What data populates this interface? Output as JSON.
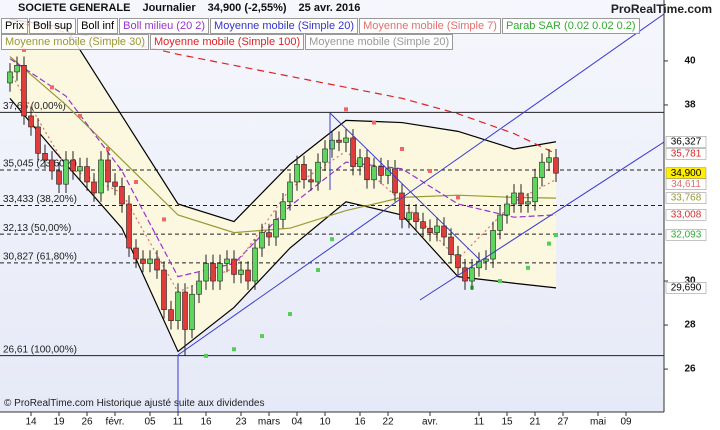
{
  "chart_data": {
    "type": "candlestick",
    "title": "SOCIETE GENERALE",
    "period": "Journalier",
    "last": "34,900 (-2,55%)",
    "date": "25 avr. 2016",
    "brand": "ProRealTime.com",
    "footer": "© ProRealTime.com Historique ajusté suite aux dividendes",
    "legend": [
      [
        {
          "label": "Prix",
          "color": "#000000"
        },
        {
          "label": "Boll sup",
          "color": "#000000"
        },
        {
          "label": "Boll inf",
          "color": "#000000"
        },
        {
          "label": "Boll milieu (20 2)",
          "color": "#9933cc"
        },
        {
          "label": "Moyenne mobile (Simple 20)",
          "color": "#3333cc"
        },
        {
          "label": "Moyenne mobile (Simple 7)",
          "color": "#e07070"
        },
        {
          "label": "Parab SAR (0.02 0.02 0.2)",
          "color": "#33aa33"
        }
      ],
      [
        {
          "label": "Moyenne mobile (Simple 30)",
          "color": "#999933"
        },
        {
          "label": "Moyenne mobile (Simple 100)",
          "color": "#dd2222"
        },
        {
          "label": "Moyenne mobile (Simple 20)",
          "color": "#999999"
        }
      ]
    ],
    "categories": [
      null,
      null,
      null,
      "14",
      null,
      null,
      null,
      "19",
      null,
      null,
      null,
      "26",
      null,
      null,
      null,
      "févr.",
      null,
      null,
      null,
      null,
      "05",
      null,
      null,
      null,
      "11",
      null,
      null,
      null,
      "16",
      null,
      null,
      null,
      null,
      "23",
      null,
      null,
      null,
      "mars",
      null,
      null,
      null,
      "04",
      null,
      null,
      null,
      "10",
      null,
      null,
      null,
      null,
      "16",
      null,
      null,
      null,
      "22",
      null,
      null,
      null,
      null,
      null,
      "avr.",
      null,
      null,
      null,
      null,
      null,
      null,
      "11",
      null,
      null,
      null,
      "15",
      null,
      null,
      null,
      "21",
      null,
      null,
      null,
      "27",
      null,
      null,
      null,
      null,
      "mai",
      null,
      null,
      null,
      "09",
      null,
      null,
      null,
      null,
      null
    ],
    "open": [
      39.0,
      39.5,
      39.8,
      37.5,
      37.0,
      35.8,
      35.5,
      35.0,
      34.4,
      35.5,
      35.0,
      35.2,
      34.5,
      34.0,
      35.5,
      34.5,
      34.3,
      33.5,
      31.5,
      31.0,
      30.8,
      31.0,
      30.5,
      28.7,
      28.2,
      29.5,
      27.8,
      29.4,
      30.0,
      30.8,
      30.0,
      30.8,
      31.0,
      30.3,
      30.5,
      30.0,
      31.5,
      32.2,
      32.0,
      32.8,
      33.6,
      34.5,
      35.3,
      34.6,
      34.5,
      35.4,
      36.0,
      36.4,
      36.3,
      36.5,
      35.2,
      35.6,
      34.6,
      35.2,
      34.8,
      35.1,
      34.0,
      32.8,
      33.1,
      32.7,
      32.4,
      32.2,
      32.5,
      32.0,
      31.2,
      30.6,
      30.0,
      30.6,
      30.9,
      31.0,
      32.3,
      33.0,
      33.5,
      34.0,
      33.5,
      33.6,
      34.7,
      35.4,
      35.6,
      null,
      null,
      null,
      null,
      null,
      null,
      null,
      null,
      null,
      null,
      null,
      null,
      null,
      null,
      null
    ],
    "high": [
      39.9,
      40.2,
      40.2,
      37.9,
      37.4,
      36.2,
      35.9,
      35.4,
      35.9,
      35.9,
      35.6,
      35.6,
      34.9,
      35.9,
      35.9,
      34.9,
      34.7,
      33.9,
      31.9,
      31.4,
      31.4,
      31.4,
      30.9,
      29.1,
      29.9,
      29.9,
      29.8,
      30.4,
      31.2,
      31.2,
      31.2,
      31.4,
      31.4,
      30.9,
      30.9,
      31.9,
      32.6,
      32.6,
      33.2,
      34.0,
      34.9,
      35.7,
      35.7,
      35.0,
      35.8,
      36.4,
      36.8,
      36.8,
      36.9,
      36.9,
      36.0,
      36.0,
      35.6,
      35.6,
      35.5,
      35.5,
      34.4,
      33.5,
      33.5,
      33.1,
      32.8,
      32.9,
      32.9,
      32.4,
      31.6,
      31.0,
      31.0,
      31.3,
      31.4,
      32.7,
      33.4,
      33.9,
      34.4,
      34.4,
      34.0,
      35.1,
      35.8,
      36.0,
      36.0,
      null,
      null,
      null,
      null,
      null,
      null,
      null,
      null,
      null,
      null,
      null,
      null,
      null,
      null,
      null
    ],
    "low": [
      38.6,
      39.1,
      37.1,
      36.6,
      35.4,
      35.1,
      34.6,
      34.0,
      34.0,
      34.6,
      34.6,
      34.1,
      33.6,
      33.6,
      34.1,
      33.9,
      33.1,
      31.1,
      30.6,
      30.4,
      30.4,
      30.1,
      28.3,
      27.8,
      27.8,
      26.61,
      27.4,
      29.0,
      29.6,
      29.6,
      29.6,
      30.4,
      29.9,
      29.9,
      29.6,
      29.6,
      31.1,
      31.6,
      31.6,
      32.4,
      33.2,
      34.1,
      34.2,
      34.1,
      34.1,
      35.0,
      35.6,
      35.9,
      35.9,
      34.8,
      34.8,
      34.2,
      34.2,
      34.4,
      34.4,
      33.6,
      32.4,
      32.4,
      32.3,
      32.0,
      31.8,
      31.8,
      31.6,
      30.8,
      30.2,
      29.6,
      29.6,
      30.2,
      30.5,
      30.6,
      31.9,
      32.6,
      33.1,
      33.1,
      33.1,
      33.2,
      34.3,
      35.0,
      34.5,
      null,
      null,
      null,
      null,
      null,
      null,
      null,
      null,
      null,
      null,
      null,
      null,
      null,
      null,
      null
    ],
    "close": [
      39.5,
      39.8,
      37.5,
      37.0,
      35.8,
      35.5,
      35.0,
      34.4,
      35.5,
      35.0,
      35.2,
      34.5,
      34.0,
      35.5,
      34.5,
      34.3,
      33.5,
      31.5,
      31.0,
      30.8,
      31.0,
      30.5,
      28.7,
      28.2,
      29.5,
      27.8,
      29.4,
      30.0,
      30.8,
      30.0,
      30.8,
      31.0,
      30.3,
      30.5,
      30.0,
      31.5,
      32.2,
      32.0,
      32.8,
      33.6,
      34.5,
      35.3,
      34.6,
      34.5,
      35.4,
      36.0,
      36.4,
      36.3,
      36.5,
      35.2,
      35.6,
      34.6,
      35.2,
      34.8,
      35.1,
      34.0,
      32.8,
      33.1,
      32.7,
      32.4,
      32.2,
      32.5,
      32.0,
      31.2,
      30.6,
      30.0,
      30.6,
      30.9,
      31.0,
      32.3,
      33.0,
      33.5,
      34.0,
      33.5,
      33.6,
      34.7,
      35.4,
      35.6,
      34.9,
      null,
      null,
      null,
      null,
      null,
      null,
      null,
      null,
      null,
      null,
      null,
      null,
      null,
      null,
      null
    ],
    "up_color": "#5fd45f",
    "down_color": "#e03c3c",
    "band_fill": "#fbf8df",
    "overlays": [
      {
        "x": [
          0,
          8,
          16,
          24,
          32,
          40,
          48,
          56,
          64,
          72,
          78
        ],
        "values": [
          41.9,
          41.5,
          37.5,
          33.5,
          32.7,
          35.3,
          37.3,
          37.2,
          36.8,
          36.0,
          36.327
        ],
        "color": "#000000",
        "dash": "none"
      },
      {
        "x": [
          0,
          8,
          16,
          24,
          32,
          40,
          48,
          56,
          64,
          72,
          78
        ],
        "values": [
          38.3,
          35.3,
          32.4,
          26.8,
          28.8,
          31.5,
          33.6,
          33.0,
          30.2,
          29.9,
          29.69
        ],
        "color": "#000000",
        "dash": "none"
      },
      {
        "x": [
          0,
          8,
          16,
          24,
          32,
          40,
          48,
          56,
          64,
          72,
          78
        ],
        "values": [
          40.2,
          38.0,
          35.5,
          33.0,
          32.2,
          32.4,
          33.2,
          33.8,
          33.9,
          33.8,
          33.768
        ],
        "color": "#999933",
        "dash": "none"
      },
      {
        "x": [
          0,
          8,
          16,
          24,
          32,
          40,
          48,
          56,
          64,
          72,
          78
        ],
        "values": [
          41.8,
          41.3,
          40.9,
          40.3,
          39.8,
          39.3,
          38.8,
          38.3,
          37.6,
          36.7,
          35.781
        ],
        "color": "#dd2222",
        "dash": "7 5"
      },
      {
        "x": [
          0,
          8,
          16,
          24,
          32,
          40,
          48,
          56,
          64,
          72,
          78
        ],
        "values": [
          40.1,
          38.4,
          35.0,
          30.2,
          30.8,
          33.4,
          35.4,
          35.1,
          33.5,
          32.9,
          33.008
        ],
        "color": "#9933cc",
        "dash": "6 3"
      },
      {
        "x": [
          0,
          8,
          16,
          24,
          32,
          40,
          48,
          56,
          64,
          72,
          78
        ],
        "values": [
          39.5,
          35.2,
          34.0,
          29.5,
          30.6,
          34.2,
          35.9,
          33.6,
          31.0,
          33.6,
          34.611
        ],
        "color": "#e07070",
        "dash": "2 3"
      }
    ],
    "sar": {
      "x": [
        2,
        6,
        10,
        14,
        18,
        22,
        28,
        32,
        36,
        40,
        44,
        46,
        48,
        52,
        56,
        60,
        64,
        66,
        70,
        74,
        77,
        78
      ],
      "values": [
        40.5,
        38.8,
        37.5,
        36.0,
        34.5,
        32.8,
        26.6,
        26.9,
        27.5,
        28.5,
        30.5,
        31.9,
        37.8,
        37.2,
        36.0,
        35.0,
        33.8,
        29.7,
        30.0,
        30.6,
        31.7,
        32.093
      ],
      "up_color": "#55cc55",
      "down_color": "#ee6666"
    },
    "fibonacci": [
      {
        "value": 37.66,
        "label": "37,66 (0,00%)",
        "dash": "none"
      },
      {
        "value": 35.045,
        "label": "35,045 (23,60%)",
        "dash": "4 3"
      },
      {
        "value": 33.433,
        "label": "33,433 (38,20%)",
        "dash": "4 3"
      },
      {
        "value": 32.13,
        "label": "32,13 (50,00%)",
        "dash": "4 3"
      },
      {
        "value": 30.827,
        "label": "30,827 (61,80%)",
        "dash": "4 3"
      },
      {
        "value": 26.61,
        "label": "26,61 (100,00%)",
        "dash": "none"
      }
    ],
    "price_tags": [
      {
        "value": 36.327,
        "label": "36,327",
        "color": "#000000",
        "bg": "#ffffff"
      },
      {
        "value": 35.781,
        "label": "35,781",
        "color": "#dd2222",
        "bg": "#ffffff"
      },
      {
        "value": 34.9,
        "label": "34,900",
        "color": "#000000",
        "bg": "#ffee00"
      },
      {
        "value": 34.611,
        "label": "34,611",
        "color": "#e07070",
        "bg": "#ffffff"
      },
      {
        "value": 33.768,
        "label": "33,768",
        "color": "#999933",
        "bg": "#ffffff"
      },
      {
        "value": 33.008,
        "label": "33,008",
        "color": "#cc3333",
        "bg": "#ffffff"
      },
      {
        "value": 32.093,
        "label": "32,093",
        "color": "#33aa33",
        "bg": "#ffffff"
      },
      {
        "value": 29.69,
        "label": "29,690",
        "color": "#000000",
        "bg": "#ffffff"
      }
    ],
    "ylim": [
      24.05,
      41.95
    ],
    "yticks": [
      26,
      28,
      30,
      38,
      40
    ]
  }
}
